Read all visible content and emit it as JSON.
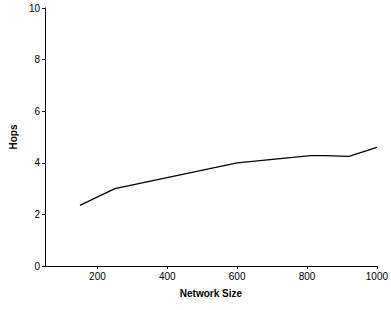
{
  "chart_data": {
    "type": "line",
    "x_label": "Network Size",
    "y_label": "Hops",
    "x": [
      150,
      250,
      600,
      810,
      850,
      920,
      1000
    ],
    "values": [
      2.35,
      3.0,
      4.0,
      4.28,
      4.28,
      4.25,
      4.6
    ],
    "color": "#000000",
    "xlim": [
      50,
      1000
    ],
    "xticks": [
      200,
      400,
      600,
      800,
      1000
    ],
    "ylim": [
      0,
      10
    ],
    "yticks": [
      0,
      2,
      4,
      6,
      8,
      10
    ],
    "grid": false,
    "marker": "none",
    "line_style": "solid"
  }
}
